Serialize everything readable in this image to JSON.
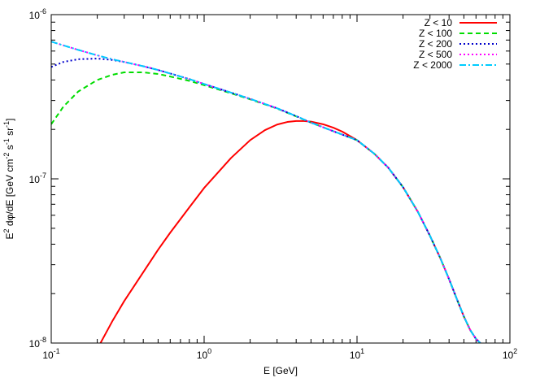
{
  "chart_data": {
    "type": "line",
    "title": "",
    "xlabel": "E [GeV]",
    "ylabel": "E^2 dφ/dE [GeV cm^-2 s^-1 sr^-1]",
    "xscale": "log",
    "yscale": "log",
    "xlim": [
      0.1,
      100
    ],
    "ylim": [
      1e-08,
      1e-06
    ],
    "grid": false,
    "legend_position": "top-right",
    "x_ticks": [
      {
        "value": 0.1,
        "mantissa": "10",
        "exponent": "-1"
      },
      {
        "value": 1,
        "mantissa": "10",
        "exponent": "0"
      },
      {
        "value": 10,
        "mantissa": "10",
        "exponent": "1"
      },
      {
        "value": 100,
        "mantissa": "10",
        "exponent": "2"
      }
    ],
    "y_ticks": [
      {
        "value": 1e-08,
        "mantissa": "10",
        "exponent": "-8"
      },
      {
        "value": 1e-07,
        "mantissa": "10",
        "exponent": "-7"
      },
      {
        "value": 1e-06,
        "mantissa": "10",
        "exponent": "-6"
      }
    ],
    "series": [
      {
        "name": "Z < 10",
        "color": "#ff0000",
        "dash": "solid",
        "x": [
          0.21,
          0.25,
          0.3,
          0.4,
          0.5,
          0.6,
          0.8,
          1.0,
          1.5,
          2.0,
          2.5,
          3.0,
          3.5,
          4.0,
          4.5,
          5.0,
          6.0,
          7.0,
          8.0,
          10,
          13,
          16,
          20,
          25,
          30,
          35,
          40,
          45,
          50,
          55,
          60,
          64
        ],
        "y": [
          1e-08,
          1.35e-08,
          1.8e-08,
          2.7e-08,
          3.7e-08,
          4.7e-08,
          6.7e-08,
          8.8e-08,
          1.34e-07,
          1.72e-07,
          1.98e-07,
          2.14e-07,
          2.22e-07,
          2.25e-07,
          2.25e-07,
          2.23e-07,
          2.15e-07,
          2.05e-07,
          1.94e-07,
          1.72e-07,
          1.42e-07,
          1.17e-07,
          8.9e-08,
          6.3e-08,
          4.5e-08,
          3.3e-08,
          2.45e-08,
          1.85e-08,
          1.45e-08,
          1.2e-08,
          1.06e-08,
          1e-08
        ]
      },
      {
        "name": "Z < 100",
        "color": "#00dd00",
        "dash": "dashed",
        "x": [
          0.1,
          0.12,
          0.15,
          0.2,
          0.25,
          0.3,
          0.4,
          0.5,
          0.6,
          0.8,
          1.0,
          1.5,
          2.0,
          3.0,
          4.0,
          5.0,
          7.0,
          10,
          13,
          16,
          20,
          25,
          30,
          35,
          40,
          45,
          50,
          55,
          60,
          64
        ],
        "y": [
          2.15e-07,
          2.75e-07,
          3.4e-07,
          4e-07,
          4.3e-07,
          4.45e-07,
          4.45e-07,
          4.35e-07,
          4.2e-07,
          3.95e-07,
          3.72e-07,
          3.32e-07,
          3.05e-07,
          2.68e-07,
          2.4e-07,
          2.2e-07,
          1.95e-07,
          1.72e-07,
          1.42e-07,
          1.17e-07,
          8.9e-08,
          6.3e-08,
          4.5e-08,
          3.3e-08,
          2.45e-08,
          1.85e-08,
          1.45e-08,
          1.2e-08,
          1.06e-08,
          1e-08
        ]
      },
      {
        "name": "Z < 200",
        "color": "#0000cc",
        "dash": "dotted",
        "x": [
          0.1,
          0.12,
          0.15,
          0.2,
          0.25,
          0.3,
          0.4,
          0.5,
          0.6,
          0.8,
          1.0,
          1.5,
          2.0,
          3.0,
          4.0,
          5.0,
          7.0,
          10,
          13,
          16,
          20,
          25,
          30,
          35,
          40,
          45,
          50,
          55,
          60,
          64
        ],
        "y": [
          4.8e-07,
          5.15e-07,
          5.35e-07,
          5.4e-07,
          5.3e-07,
          5.15e-07,
          4.85e-07,
          4.6e-07,
          4.38e-07,
          4.05e-07,
          3.78e-07,
          3.35e-07,
          3.07e-07,
          2.69e-07,
          2.41e-07,
          2.2e-07,
          1.95e-07,
          1.72e-07,
          1.42e-07,
          1.17e-07,
          8.9e-08,
          6.3e-08,
          4.5e-08,
          3.3e-08,
          2.45e-08,
          1.85e-08,
          1.45e-08,
          1.2e-08,
          1.06e-08,
          1e-08
        ]
      },
      {
        "name": "Z < 500",
        "color": "#ff00ff",
        "dash": "dotted",
        "x": [
          0.1,
          0.12,
          0.15,
          0.2,
          0.25,
          0.3,
          0.4,
          0.5,
          0.6,
          0.8,
          1.0,
          1.5,
          2.0,
          3.0,
          4.0,
          5.0,
          7.0,
          10,
          13,
          16,
          20,
          25,
          30,
          35,
          40,
          45,
          50,
          55,
          60,
          64
        ],
        "y": [
          6.85e-07,
          6.5e-07,
          6.1e-07,
          5.65e-07,
          5.35e-07,
          5.15e-07,
          4.85e-07,
          4.6e-07,
          4.38e-07,
          4.05e-07,
          3.78e-07,
          3.35e-07,
          3.07e-07,
          2.69e-07,
          2.41e-07,
          2.2e-07,
          1.95e-07,
          1.72e-07,
          1.42e-07,
          1.17e-07,
          8.9e-08,
          6.3e-08,
          4.5e-08,
          3.3e-08,
          2.45e-08,
          1.85e-08,
          1.45e-08,
          1.2e-08,
          1.06e-08,
          1e-08
        ]
      },
      {
        "name": "Z < 2000",
        "color": "#00ccff",
        "dash": "dashdot",
        "x": [
          0.1,
          0.12,
          0.15,
          0.2,
          0.25,
          0.3,
          0.4,
          0.5,
          0.6,
          0.8,
          1.0,
          1.5,
          2.0,
          3.0,
          4.0,
          5.0,
          7.0,
          10,
          13,
          16,
          20,
          25,
          30,
          35,
          40,
          45,
          50,
          55,
          60,
          64
        ],
        "y": [
          6.85e-07,
          6.5e-07,
          6.1e-07,
          5.65e-07,
          5.35e-07,
          5.15e-07,
          4.85e-07,
          4.6e-07,
          4.38e-07,
          4.05e-07,
          3.78e-07,
          3.35e-07,
          3.07e-07,
          2.69e-07,
          2.41e-07,
          2.2e-07,
          1.95e-07,
          1.72e-07,
          1.42e-07,
          1.17e-07,
          8.9e-08,
          6.3e-08,
          4.5e-08,
          3.3e-08,
          2.45e-08,
          1.85e-08,
          1.45e-08,
          1.2e-08,
          1.06e-08,
          1e-08
        ]
      }
    ]
  }
}
